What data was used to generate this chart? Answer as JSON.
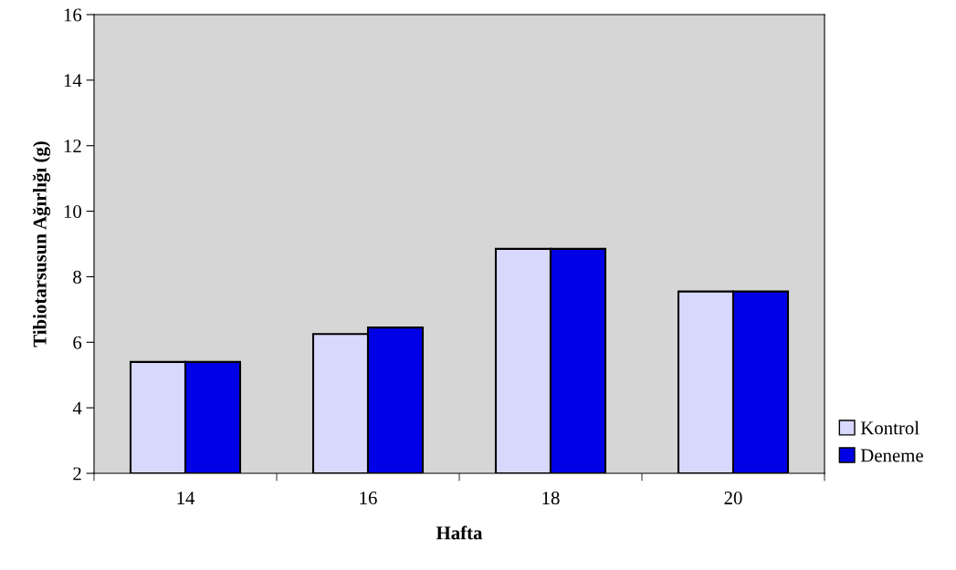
{
  "chart_data": {
    "type": "bar",
    "xlabel": "Hafta",
    "ylabel": "Tibiotarsusun Ağırlığı (g)",
    "categories": [
      "14",
      "16",
      "18",
      "20"
    ],
    "series": [
      {
        "name": "Kontrol",
        "color": "#d8d8fc",
        "values": [
          5.4,
          6.25,
          8.85,
          7.55
        ]
      },
      {
        "name": "Deneme",
        "color": "#0000e6",
        "values": [
          5.4,
          6.45,
          8.85,
          7.55
        ]
      }
    ],
    "ylim": [
      2,
      16
    ],
    "yticks": [
      2,
      4,
      6,
      8,
      10,
      12,
      14,
      16
    ],
    "grid": false,
    "legend": "bottom right"
  }
}
